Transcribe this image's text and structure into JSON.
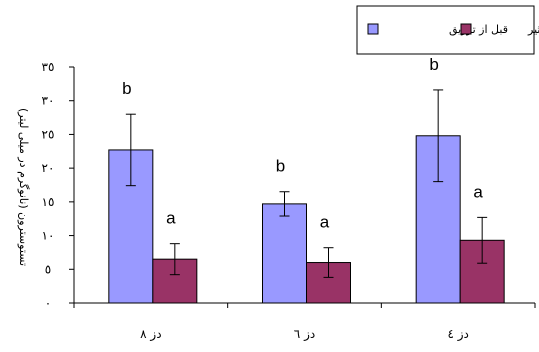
{
  "chart_data": {
    "type": "bar",
    "ylabel": "تستوسترون (نانوگرم در میلی لیتر)",
    "ylim": [
      0,
      35
    ],
    "yticks": [
      0,
      5,
      10,
      15,
      20,
      25,
      30,
      35
    ],
    "ytick_labels": [
      "٠",
      "٥",
      "١٠",
      "١٥",
      "٢٠",
      "٢٥",
      "٣٠",
      "٣٥"
    ],
    "grid": false,
    "legend_position": "top-right",
    "categories": [
      "دز ٨",
      "دز ٦",
      "دز ٤"
    ],
    "series": [
      {
        "name": "قبل از تزریق",
        "color": "#9999FF",
        "values": [
          22.7,
          14.7,
          24.8
        ],
        "error": [
          5.3,
          1.8,
          6.8
        ],
        "significance": [
          "b",
          "b",
          "b"
        ]
      },
      {
        "name": "قبل از تکثیر",
        "color": "#993366",
        "values": [
          6.5,
          6.0,
          9.3
        ],
        "error": [
          2.3,
          2.2,
          3.4
        ],
        "significance": [
          "a",
          "a",
          "a"
        ]
      }
    ]
  }
}
